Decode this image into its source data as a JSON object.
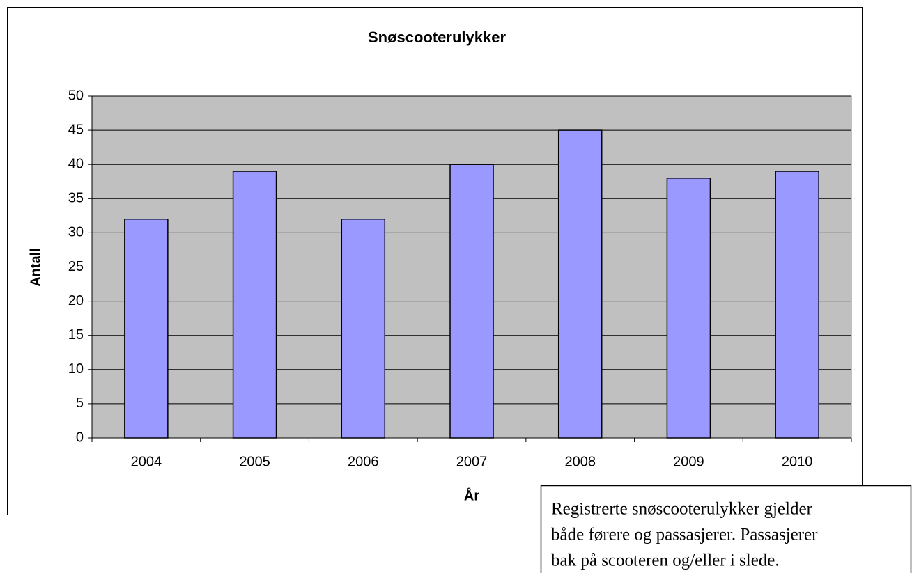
{
  "chart_data": {
    "type": "bar",
    "title": "Snøscooterulykker",
    "x_label": "År",
    "y_label": "Antall",
    "categories": [
      "2004",
      "2005",
      "2006",
      "2007",
      "2008",
      "2009",
      "2010"
    ],
    "values": [
      32,
      39,
      32,
      40,
      45,
      38,
      39
    ],
    "color": "#9999ff",
    "plot_background": "#c0c0c0",
    "ylim": [
      0,
      50
    ],
    "yticks": [
      0,
      5,
      10,
      15,
      20,
      25,
      30,
      35,
      40,
      45,
      50
    ],
    "grid": true,
    "annotation": [
      "Registrerte snøscooterulykker gjelder",
      "både førere og passasjerer. Passasjerer",
      "bak på scooteren og/eller i slede."
    ]
  }
}
